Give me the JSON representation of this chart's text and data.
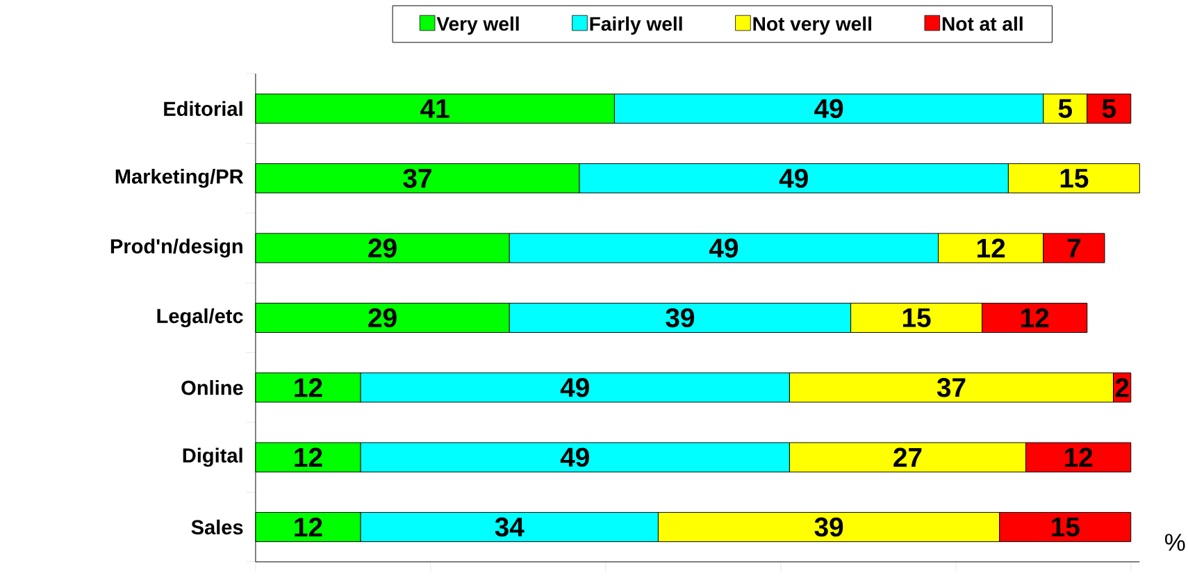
{
  "chart_data": {
    "type": "bar",
    "orientation": "horizontal",
    "stacked": true,
    "data_labels": true,
    "legend": "top",
    "tick_labels": "y",
    "xlabel": "%",
    "categories": [
      "Editorial",
      "Marketing/PR",
      "Prod'n/design",
      "Legal/etc",
      "Online",
      "Digital",
      "Sales"
    ],
    "xlim": [
      0,
      101
    ],
    "xticks": [
      {
        "value": 0,
        "label": null
      },
      {
        "value": 20,
        "label": null
      },
      {
        "value": 40,
        "label": null
      },
      {
        "value": 60,
        "label": null
      },
      {
        "value": 80,
        "label": null
      },
      {
        "value": 100,
        "label": null
      }
    ],
    "series": [
      {
        "name": "Very well",
        "color": "#00ff00",
        "values": [
          41,
          37,
          29,
          29,
          12,
          12,
          12
        ]
      },
      {
        "name": "Fairly well",
        "color": "#00ffff",
        "values": [
          49,
          49,
          49,
          39,
          49,
          49,
          34
        ]
      },
      {
        "name": "Not very well",
        "color": "#ffff00",
        "values": [
          5,
          15,
          12,
          15,
          37,
          27,
          39
        ]
      },
      {
        "name": "Not at all",
        "color": "#ff0000",
        "values": [
          5,
          null,
          7,
          12,
          2,
          12,
          15
        ]
      }
    ]
  }
}
